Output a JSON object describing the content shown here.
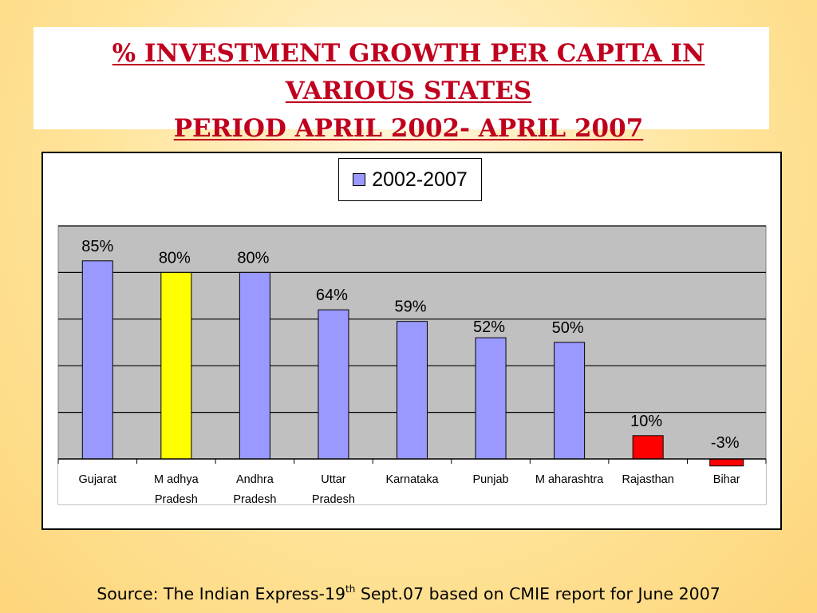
{
  "title": {
    "line1": "% INVESTMENT GROWTH PER CAPITA IN",
    "line2": "VARIOUS STATES",
    "line3": "PERIOD APRIL 2002- APRIL 2007"
  },
  "source": {
    "prefix": "Source: The Indian Express-19",
    "sup": "th",
    "suffix": " Sept.07 based on CMIE report for June 2007"
  },
  "chart_data": {
    "type": "bar",
    "categories": [
      [
        "Gujarat"
      ],
      [
        "M adhya",
        "Pradesh"
      ],
      [
        "Andhra",
        "Pradesh"
      ],
      [
        "Uttar",
        "Pradesh"
      ],
      [
        "Karnataka"
      ],
      [
        "Punjab"
      ],
      [
        "M aharashtra"
      ],
      [
        "Rajasthan"
      ],
      [
        "Bihar"
      ]
    ],
    "series": [
      {
        "name": "2002-2007",
        "values": [
          85,
          80,
          80,
          64,
          59,
          52,
          50,
          10,
          -3
        ],
        "labels": [
          "85%",
          "80%",
          "80%",
          "64%",
          "59%",
          "52%",
          "50%",
          "10%",
          "-3%"
        ],
        "colors": [
          "#9999ff",
          "#ffff00",
          "#9999ff",
          "#9999ff",
          "#9999ff",
          "#9999ff",
          "#9999ff",
          "#ff0000",
          "#ff0000"
        ]
      }
    ],
    "ylim": [
      0,
      100
    ],
    "gridlines": [
      20,
      40,
      60,
      80,
      100
    ],
    "grid": true,
    "legend": "top-center",
    "plot_background": "#c0c0c0"
  }
}
